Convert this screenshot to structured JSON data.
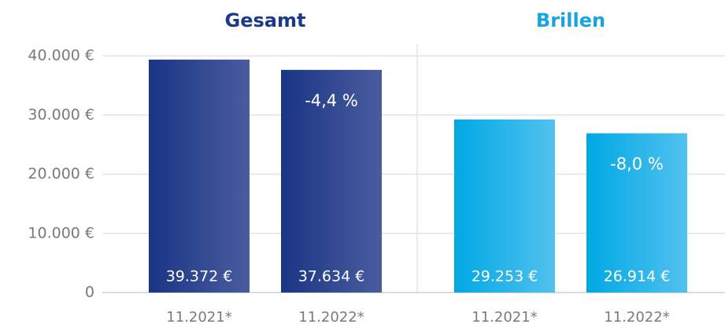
{
  "chart_data": [
    {
      "type": "bar",
      "title": "Gesamt",
      "title_color": "#1b3a8c",
      "categories": [
        "11.2021*",
        "11.2022*"
      ],
      "values": [
        39372,
        37634
      ],
      "value_labels": [
        "39.372 €",
        "37.634 €"
      ],
      "annotation": "-4,4 %",
      "color": [
        "#1a3585",
        "#4a5c9e"
      ],
      "ylim": [
        0,
        42000
      ],
      "yticks": [
        0,
        {
          "value": 10000,
          "label": "10.000 €"
        },
        {
          "value": 20000,
          "label": "20.000 €"
        },
        {
          "value": 30000,
          "label": "30.000 €"
        },
        {
          "value": 40000,
          "label": "40.000 €"
        }
      ],
      "grid": true
    },
    {
      "type": "bar",
      "title": "Brillen",
      "title_color": "#17a4e0",
      "categories": [
        "11.2021*",
        "11.2022*"
      ],
      "values": [
        29253,
        26914
      ],
      "value_labels": [
        "29.253 €",
        "26.914 €"
      ],
      "annotation": "-8,0 %",
      "color": [
        "#00a8e4",
        "#52c1ee"
      ],
      "ylim": [
        0,
        42000
      ]
    }
  ]
}
